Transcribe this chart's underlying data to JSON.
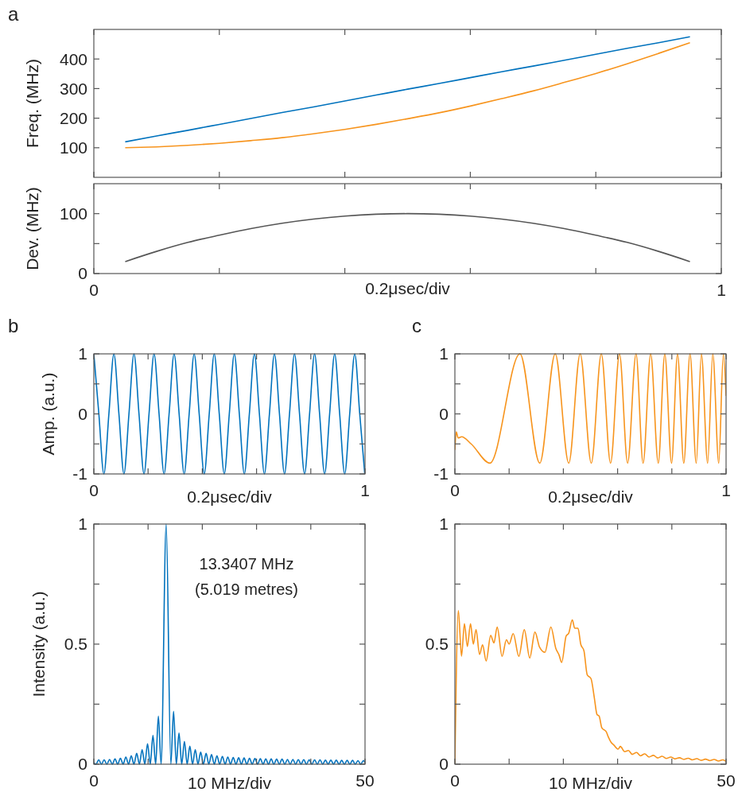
{
  "chart_data": [
    {
      "type": "line",
      "annotations": [
        "a"
      ],
      "ylabel": "Freq. (MHz)",
      "xlim": [
        0,
        1
      ],
      "ylim": [
        0,
        500
      ],
      "tick_labels": "y",
      "xticks": [
        {
          "value": 0,
          "label": null
        },
        {
          "value": 0.2,
          "label": null
        },
        {
          "value": 0.4,
          "label": null
        },
        {
          "value": 0.6,
          "label": null
        },
        {
          "value": 0.8,
          "label": null
        },
        {
          "value": 1,
          "label": null
        }
      ],
      "yticks": [
        100,
        200,
        300,
        400
      ],
      "x": [
        0.05,
        0.1,
        0.15,
        0.2,
        0.25,
        0.3,
        0.35,
        0.4,
        0.45,
        0.5,
        0.55,
        0.6,
        0.65,
        0.7,
        0.75,
        0.8,
        0.85,
        0.9,
        0.95
      ],
      "series": [
        {
          "color": "#0072bd",
          "values": [
            120,
            140,
            159,
            179,
            199,
            219,
            238,
            258,
            278,
            298,
            317,
            337,
            357,
            376,
            396,
            416,
            436,
            455,
            475
          ]
        },
        {
          "color": "#f7941d",
          "values": [
            100,
            103,
            108,
            115,
            124,
            134,
            147,
            162,
            179,
            198,
            218,
            241,
            266,
            292,
            321,
            351,
            384,
            419,
            455
          ]
        }
      ]
    },
    {
      "type": "line",
      "xlabel": "0.2μsec/div",
      "xlim": [
        0,
        1
      ],
      "ylim": [
        0,
        150
      ],
      "ylabel": "Dev. (MHz)",
      "xticks": [
        0,
        {
          "value": 0.2,
          "label": null
        },
        {
          "value": 0.4,
          "label": null
        },
        {
          "value": 0.6,
          "label": null
        },
        {
          "value": 0.8,
          "label": null
        },
        1
      ],
      "yticks": [
        0,
        {
          "value": 50,
          "label": null
        },
        100
      ],
      "x": [
        0.05,
        0.1,
        0.15,
        0.2,
        0.25,
        0.3,
        0.35,
        0.4,
        0.45,
        0.5,
        0.55,
        0.6,
        0.65,
        0.7,
        0.75,
        0.8,
        0.85,
        0.9,
        0.95
      ],
      "series": [
        {
          "color": "#555555",
          "values": [
            20,
            37,
            52,
            64,
            75,
            84,
            91,
            96,
            99,
            100,
            99,
            96,
            91,
            84,
            75,
            64,
            52,
            37,
            20
          ]
        }
      ]
    },
    {
      "type": "line",
      "annotations": [
        "b"
      ],
      "xlabel": "0.2μsec/div",
      "ylabel": "Amp. (a.u.)",
      "xlim": [
        0,
        1
      ],
      "ylim": [
        -1,
        1
      ],
      "xticks": [
        0,
        {
          "value": 0.2,
          "label": null
        },
        {
          "value": 0.4,
          "label": null
        },
        {
          "value": 0.6,
          "label": null
        },
        {
          "value": 0.8,
          "label": null
        },
        1
      ],
      "yticks": [
        -1,
        {
          "value": -0.5,
          "label": null
        },
        0,
        {
          "value": 0.5,
          "label": null
        },
        1
      ],
      "series": [
        {
          "color": "#0072bd",
          "x": [
            0,
            0.0185,
            0.037,
            0.0555,
            0.074,
            0.0925,
            0.111,
            0.1295,
            0.148,
            0.1665,
            0.185,
            0.2035,
            0.222,
            0.2405,
            0.259,
            0.2775,
            0.296,
            0.3145,
            0.333,
            0.3515,
            0.37,
            0.3885,
            0.407,
            0.4255,
            0.444,
            0.4625,
            0.481,
            0.4995,
            0.518,
            0.5365,
            0.555,
            0.5735,
            0.592,
            0.6105,
            0.629,
            0.6475,
            0.666,
            0.6845,
            0.703,
            0.7215,
            0.74,
            0.7585,
            0.777,
            0.7955,
            0.814,
            0.8325,
            0.851,
            0.8695,
            0.888,
            0.9065,
            0.925,
            0.9435,
            0.962,
            0.9805,
            0.999
          ],
          "values": [
            1,
            0,
            -1,
            0,
            1,
            0,
            -1,
            0,
            1,
            0,
            -1,
            0,
            1,
            0,
            -1,
            0,
            1,
            0,
            -1,
            0,
            1,
            0,
            -1,
            0,
            1,
            0,
            -1,
            0,
            1,
            0,
            -1,
            0,
            1,
            0,
            -1,
            0,
            1,
            0,
            -1,
            0,
            1,
            0,
            -1,
            0,
            1,
            0,
            -1,
            0,
            1,
            0,
            -1,
            0,
            1,
            0,
            -1
          ]
        }
      ]
    },
    {
      "type": "line",
      "annotations": [
        "13.3407 MHz",
        "(5.019 metres)"
      ],
      "xlabel": "10 MHz/div",
      "ylabel": "Intensity (a.u.)",
      "xlim": [
        0,
        50
      ],
      "ylim": [
        0,
        1
      ],
      "xticks": [
        0,
        {
          "value": 10,
          "label": null
        },
        {
          "value": 20,
          "label": null
        },
        {
          "value": 30,
          "label": null
        },
        {
          "value": 40,
          "label": null
        },
        50
      ],
      "yticks": [
        0,
        {
          "value": 0.25,
          "label": null
        },
        0.5,
        {
          "value": 0.75,
          "label": null
        },
        1
      ],
      "series": [
        {
          "color": "#0072bd",
          "x": [
            0,
            0.4,
            0.9,
            1.4,
            1.9,
            2.4,
            2.9,
            3.4,
            3.9,
            4.4,
            4.9,
            5.4,
            5.9,
            6.4,
            6.9,
            7.4,
            7.9,
            8.4,
            8.9,
            9.4,
            9.9,
            10.4,
            10.9,
            11.4,
            11.9,
            12.4,
            13.34,
            14.2,
            14.7,
            15.2,
            15.7,
            16.2,
            16.7,
            17.2,
            17.7,
            18.2,
            18.7,
            19.2,
            19.7,
            20.2,
            20.7,
            21.2,
            21.7,
            22.2,
            22.7,
            23.2,
            23.7,
            24.2,
            24.7,
            25.2,
            25.7,
            26.2,
            26.7,
            27.2,
            27.7,
            28.2,
            28.7,
            29.2,
            29.7,
            30.2,
            30.7,
            31.2,
            31.7,
            32.2,
            32.7,
            33.2,
            33.7,
            34.2,
            34.7,
            35.2,
            35.7,
            36.2,
            36.7,
            37.2,
            37.7,
            38.2,
            38.7,
            39.2,
            39.7,
            40.2,
            40.7,
            41.2,
            41.7,
            42.2,
            42.7,
            43.2,
            43.7,
            44.2,
            44.7,
            45.2,
            45.7,
            46.2,
            46.7,
            47.2,
            47.7,
            48.2,
            48.7,
            49.2,
            49.7,
            50
          ],
          "values": [
            0.005,
            0,
            0.018,
            0,
            0.018,
            0,
            0.02,
            0,
            0.022,
            0,
            0.025,
            0,
            0.03,
            0,
            0.035,
            0,
            0.045,
            0,
            0.06,
            0,
            0.085,
            0,
            0.12,
            0,
            0.2,
            0,
            1,
            0,
            0.22,
            0,
            0.13,
            0,
            0.095,
            0,
            0.075,
            0,
            0.06,
            0,
            0.05,
            0,
            0.045,
            0,
            0.04,
            0,
            0.035,
            0,
            0.032,
            0,
            0.03,
            0,
            0.028,
            0,
            0.027,
            0,
            0.026,
            0,
            0.025,
            0,
            0.024,
            0,
            0.023,
            0,
            0.022,
            0,
            0.022,
            0,
            0.021,
            0,
            0.021,
            0,
            0.02,
            0,
            0.02,
            0,
            0.019,
            0,
            0.019,
            0,
            0.018,
            0,
            0.018,
            0,
            0.018,
            0,
            0.017,
            0,
            0.017,
            0,
            0.017,
            0,
            0.016,
            0,
            0.016,
            0,
            0.016,
            0,
            0.015,
            0,
            0.015,
            0.008
          ]
        }
      ]
    },
    {
      "type": "line",
      "annotations": [
        "c"
      ],
      "xlabel": "0.2μsec/div",
      "xlim": [
        0,
        1
      ],
      "ylim": [
        -1,
        1
      ],
      "xticks": [
        0,
        {
          "value": 0.2,
          "label": null
        },
        {
          "value": 0.4,
          "label": null
        },
        {
          "value": 0.6,
          "label": null
        },
        {
          "value": 0.8,
          "label": null
        },
        1
      ],
      "yticks": [
        -1,
        {
          "value": -0.5,
          "label": null
        },
        0,
        {
          "value": 0.5,
          "label": null
        },
        1
      ],
      "series": [
        {
          "color": "#f7941d",
          "x": [
            0,
            0.005,
            0.012,
            0.025,
            0.06,
            0.129,
            0.24,
            0.313,
            0.37,
            0.42,
            0.462,
            0.503,
            0.54,
            0.574,
            0.607,
            0.637,
            0.668,
            0.694,
            0.722,
            0.75,
            0.774,
            0.799,
            0.821,
            0.844,
            0.867,
            0.89,
            0.909,
            0.932,
            0.951,
            0.973,
            0.99,
            1
          ],
          "values": [
            -0.6,
            -0.3,
            -0.4,
            -0.38,
            -0.5,
            -0.82,
            1,
            -0.82,
            1,
            -0.82,
            1,
            -0.82,
            1,
            -0.82,
            1,
            -0.82,
            1,
            -0.82,
            1,
            -0.82,
            1,
            -0.82,
            1,
            -0.82,
            1,
            -0.82,
            1,
            -0.82,
            1,
            -0.82,
            1,
            0.3
          ]
        }
      ]
    },
    {
      "type": "line",
      "xlabel": "10 MHz/div",
      "xlim": [
        0,
        50
      ],
      "ylim": [
        0,
        1
      ],
      "xticks": [
        0,
        {
          "value": 10,
          "label": null
        },
        {
          "value": 20,
          "label": null
        },
        {
          "value": 30,
          "label": null
        },
        {
          "value": 40,
          "label": null
        },
        50
      ],
      "yticks": [
        0,
        {
          "value": 0.25,
          "label": null
        },
        0.5,
        {
          "value": 0.75,
          "label": null
        },
        1
      ],
      "series": [
        {
          "color": "#f7941d",
          "x": [
            0,
            0.64,
            1.22,
            1.76,
            2.3,
            2.88,
            3.4,
            3.9,
            4.55,
            5.1,
            5.77,
            6.6,
            7.2,
            7.8,
            8.7,
            9.5,
            10,
            10.75,
            11.8,
            12.8,
            13.8,
            14.76,
            15.6,
            16.6,
            17.7,
            18.6,
            19.2,
            19.7,
            20.5,
            21,
            21.65,
            22.1,
            22.7,
            23.2,
            23.8,
            24.4,
            25.1,
            25.7,
            26.2,
            26.6,
            27.1,
            27.9,
            28.3,
            28.8,
            29.3,
            30.1,
            30.5,
            31.3,
            32,
            32.7,
            33.5,
            34.2,
            35,
            35.8,
            36.6,
            37.4,
            38.2,
            39,
            39.8,
            40.6,
            41.4,
            42.2,
            43,
            43.8,
            44.6,
            45.4,
            46.2,
            47,
            47.8,
            48.6,
            49.4,
            50
          ],
          "values": [
            0,
            0.64,
            0.45,
            0.585,
            0.49,
            0.585,
            0.5,
            0.56,
            0.457,
            0.497,
            0.43,
            0.536,
            0.505,
            0.571,
            0.449,
            0.518,
            0.5,
            0.544,
            0.449,
            0.56,
            0.442,
            0.55,
            0.488,
            0.466,
            0.571,
            0.483,
            0.455,
            0.424,
            0.533,
            0.546,
            0.601,
            0.566,
            0.566,
            0.5,
            0.472,
            0.372,
            0.356,
            0.278,
            0.207,
            0.2,
            0.151,
            0.135,
            0.113,
            0.091,
            0.08,
            0.063,
            0.074,
            0.052,
            0.057,
            0.041,
            0.049,
            0.035,
            0.043,
            0.03,
            0.037,
            0.026,
            0.033,
            0.024,
            0.03,
            0.022,
            0.027,
            0.02,
            0.025,
            0.018,
            0.023,
            0.016,
            0.021,
            0.015,
            0.02,
            0.013,
            0.018,
            0.012
          ]
        }
      ]
    }
  ]
}
